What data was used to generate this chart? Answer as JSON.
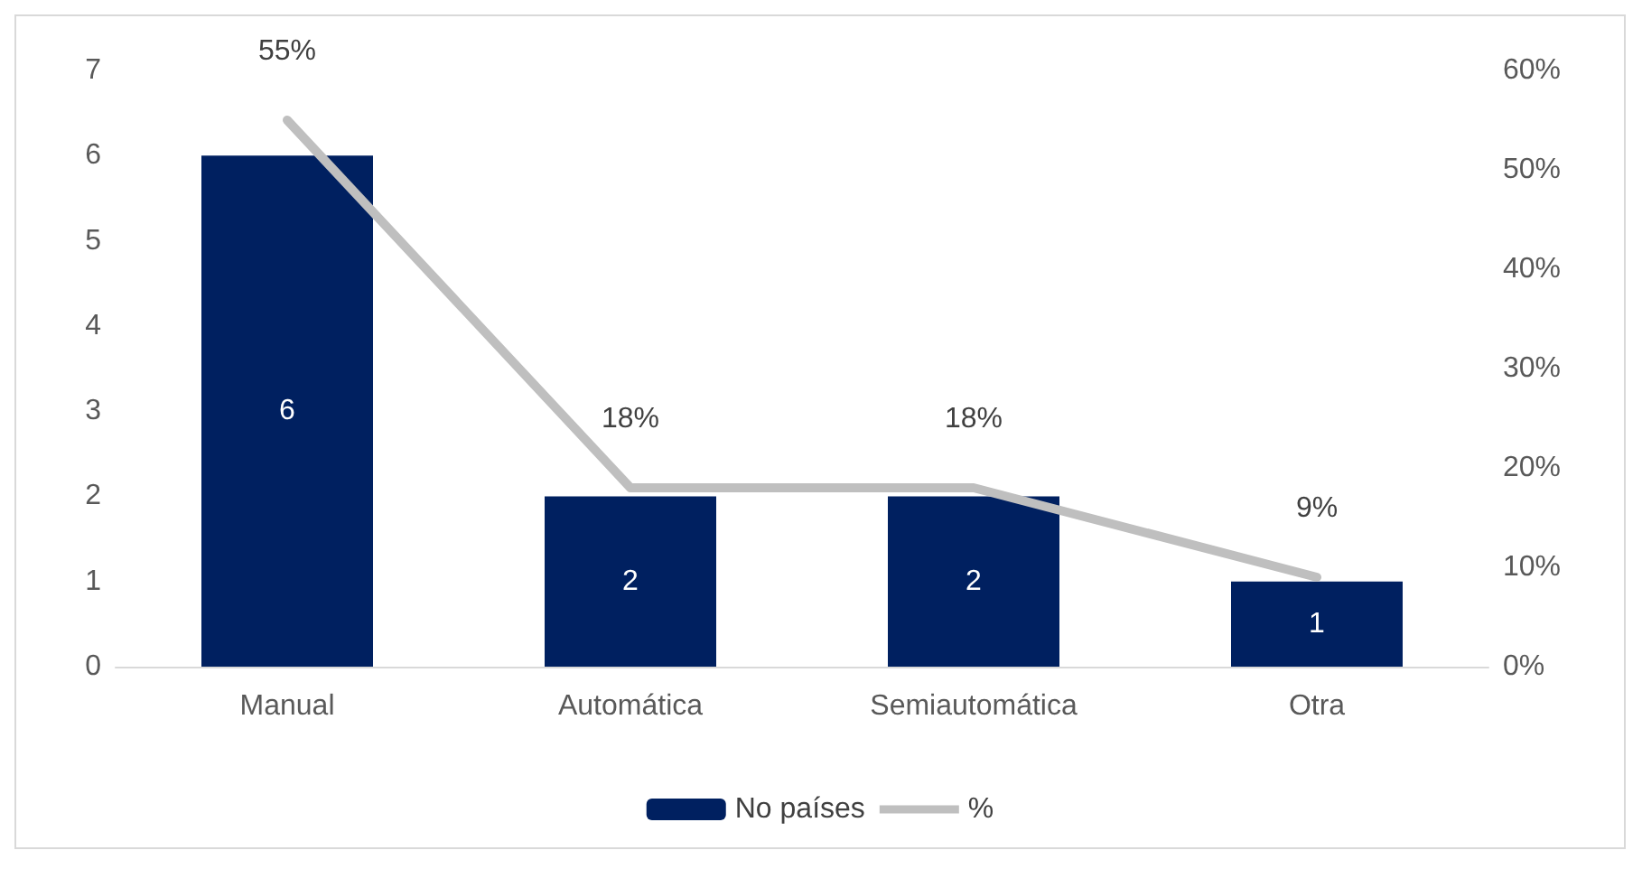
{
  "chart_data": {
    "type": "bar",
    "categories": [
      "Manual",
      "Automática",
      "Semiautomática",
      "Otra"
    ],
    "series": [
      {
        "name": "No países",
        "color": "#002060",
        "values": [
          6,
          2,
          2,
          1
        ],
        "value_labels": [
          "6",
          "2",
          "2",
          "1"
        ]
      },
      {
        "name": "%",
        "type": "line",
        "axis": "y2",
        "color": "#bfbfbf",
        "values": [
          55,
          18,
          18,
          9
        ],
        "value_labels": [
          "55%",
          "18%",
          "18%",
          "9%"
        ]
      }
    ],
    "ylim": [
      0,
      7
    ],
    "yticks": [
      0,
      1,
      2,
      3,
      4,
      5,
      6,
      7
    ],
    "y2lim": [
      0,
      60
    ],
    "y2ticks": [
      {
        "value": 0,
        "label": "0%"
      },
      {
        "value": 10,
        "label": "10%"
      },
      {
        "value": 20,
        "label": "20%"
      },
      {
        "value": 30,
        "label": "30%"
      },
      {
        "value": 40,
        "label": "40%"
      },
      {
        "value": 50,
        "label": "50%"
      },
      {
        "value": 60,
        "label": "60%"
      }
    ],
    "legend": "bottom",
    "grid": false,
    "marker": "none",
    "line_style": "solid"
  }
}
